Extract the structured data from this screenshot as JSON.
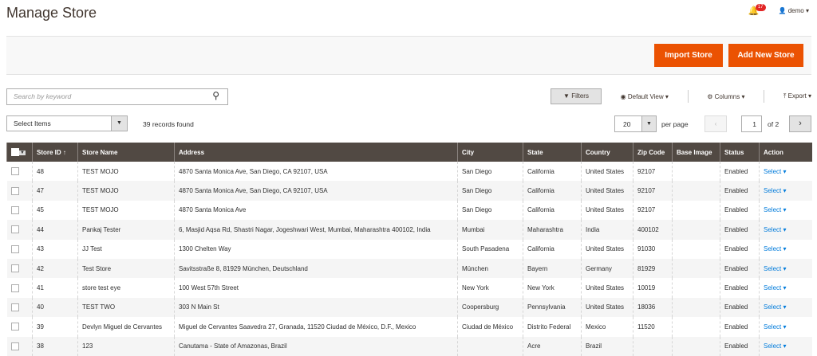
{
  "header": {
    "title": "Manage Store",
    "notifications": "17",
    "user": "demo"
  },
  "actions": {
    "import": "Import Store",
    "add": "Add New Store"
  },
  "toolbar": {
    "search_placeholder": "Search by keyword",
    "filters": "Filters",
    "view": "Default View",
    "columns": "Columns",
    "export": "Export",
    "select_items": "Select Items",
    "records": "39 records found",
    "per_page_value": "20",
    "per_page": "per page",
    "page": "1",
    "of_pages": "of 2"
  },
  "columns": [
    "Store ID",
    "Store Name",
    "Address",
    "City",
    "State",
    "Country",
    "Zip Code",
    "Base Image",
    "Status",
    "Action"
  ],
  "rows": [
    [
      "48",
      "TEST MOJO",
      "4870 Santa Monica Ave, San Diego, CA 92107, USA",
      "San Diego",
      "California",
      "United States",
      "92107",
      "",
      "Enabled",
      "Select"
    ],
    [
      "47",
      "TEST MOJO",
      "4870 Santa Monica Ave, San Diego, CA 92107, USA",
      "San Diego",
      "California",
      "United States",
      "92107",
      "",
      "Enabled",
      "Select"
    ],
    [
      "45",
      "TEST MOJO",
      "4870 Santa Monica Ave",
      "San Diego",
      "California",
      "United States",
      "92107",
      "",
      "Enabled",
      "Select"
    ],
    [
      "44",
      "Pankaj Tester",
      "6, Masjid Aqsa Rd, Shastri Nagar, Jogeshwari West, Mumbai, Maharashtra 400102, India",
      "Mumbai",
      "Maharashtra",
      "India",
      "400102",
      "",
      "Enabled",
      "Select"
    ],
    [
      "43",
      "JJ Test",
      "1300 Chelten Way",
      "South Pasadena",
      "California",
      "United States",
      "91030",
      "",
      "Enabled",
      "Select"
    ],
    [
      "42",
      "Test Store",
      "Savitsstraße 8, 81929 München, Deutschland",
      "München",
      "Bayern",
      "Germany",
      "81929",
      "",
      "Enabled",
      "Select"
    ],
    [
      "41",
      "store test eye",
      "100 West 57th Street",
      "New York",
      "New York",
      "United States",
      "10019",
      "",
      "Enabled",
      "Select"
    ],
    [
      "40",
      "TEST TWO",
      "303 N Main St",
      "Coopersburg",
      "Pennsylvania",
      "United States",
      "18036",
      "",
      "Enabled",
      "Select"
    ],
    [
      "39",
      "Devlyn Miguel de Cervantes",
      "Miguel de Cervantes Saavedra 27, Granada, 11520 Ciudad de México, D.F., Mexico",
      "Ciudad de México",
      "Distrito Federal",
      "Mexico",
      "11520",
      "",
      "Enabled",
      "Select"
    ],
    [
      "38",
      "123",
      "Canutama - State of Amazonas, Brazil",
      "",
      "Acre",
      "Brazil",
      "",
      "",
      "Enabled",
      "Select"
    ]
  ]
}
